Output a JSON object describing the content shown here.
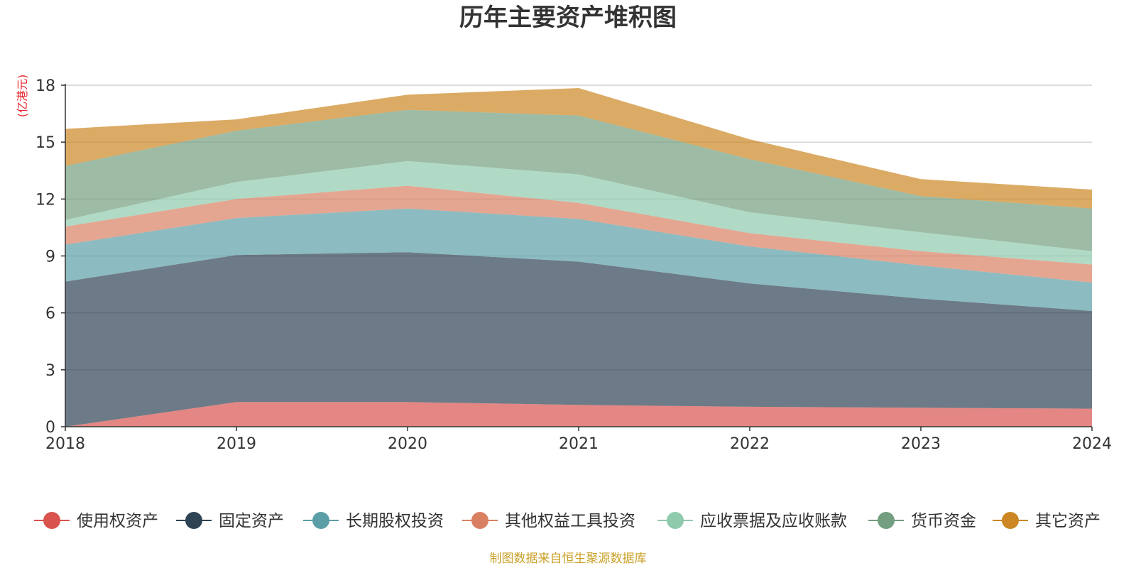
{
  "chart_data": {
    "type": "area",
    "stacked": true,
    "title": "历年主要资产堆积图",
    "unit_label": "(亿港元)",
    "x": [
      "2018",
      "2019",
      "2020",
      "2021",
      "2022",
      "2023",
      "2024"
    ],
    "ylim": [
      0,
      18
    ],
    "yticks": [
      "0",
      "3",
      "6",
      "9",
      "12",
      "15",
      "18"
    ],
    "grid": true,
    "legend_position": "bottom",
    "series": [
      {
        "name": "使用权资产",
        "color": "#d9534f",
        "values": [
          0.0,
          1.3,
          1.3,
          1.15,
          1.05,
          1.0,
          0.95
        ]
      },
      {
        "name": "固定资产",
        "color": "#2e4354",
        "values": [
          7.65,
          7.75,
          7.9,
          7.55,
          6.5,
          5.75,
          5.15
        ]
      },
      {
        "name": "长期股权投资",
        "color": "#5b9ea6",
        "values": [
          1.95,
          1.95,
          2.3,
          2.25,
          1.95,
          1.75,
          1.5
        ]
      },
      {
        "name": "其他权益工具投资",
        "color": "#d98063",
        "values": [
          0.95,
          1.0,
          1.2,
          0.85,
          0.7,
          0.75,
          0.95
        ]
      },
      {
        "name": "应收票据及应收账款",
        "color": "#8fcaad",
        "values": [
          0.35,
          0.9,
          1.3,
          1.5,
          1.1,
          1.0,
          0.7
        ]
      },
      {
        "name": "货币资金",
        "color": "#739e7f",
        "values": [
          2.85,
          2.7,
          2.7,
          3.1,
          2.8,
          1.9,
          2.25
        ]
      },
      {
        "name": "其它资产",
        "color": "#cc8724",
        "values": [
          1.95,
          0.6,
          0.8,
          1.45,
          1.05,
          0.9,
          1.0
        ]
      }
    ],
    "source_note": "制图数据来自恒生聚源数据库"
  }
}
